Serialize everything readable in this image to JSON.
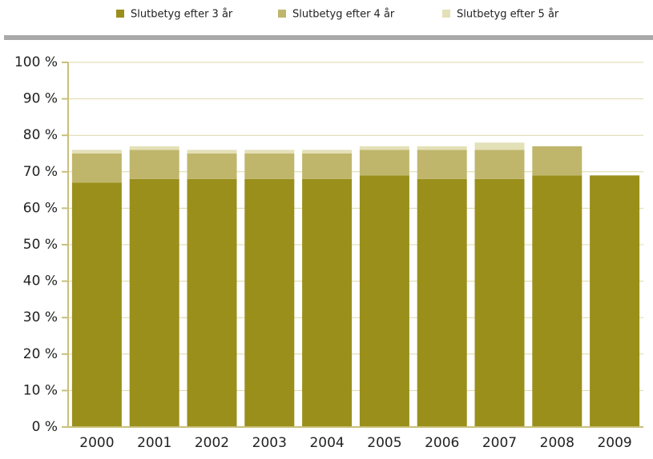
{
  "chart_data": {
    "type": "stacked_bar",
    "categories": [
      "2000",
      "2001",
      "2002",
      "2003",
      "2004",
      "2005",
      "2006",
      "2007",
      "2008",
      "2009"
    ],
    "series": [
      {
        "name": "Slutbetyg efter 3 år",
        "color": "#9a8f1b",
        "values": [
          67,
          68,
          68,
          68,
          68,
          69,
          68,
          68,
          69,
          69
        ]
      },
      {
        "name": "Slutbetyg efter 4 år",
        "color": "#bfb66c",
        "values": [
          8,
          8,
          7,
          7,
          7,
          7,
          8,
          8,
          8,
          0
        ]
      },
      {
        "name": "Slutbetyg efter 5 år",
        "color": "#e4e0b8",
        "values": [
          1,
          1,
          1,
          1,
          1,
          1,
          1,
          2,
          0,
          0
        ]
      }
    ],
    "ylim": [
      0,
      100
    ],
    "yticks": [
      {
        "value": 0,
        "label": "0 %"
      },
      {
        "value": 10,
        "label": "10 %"
      },
      {
        "value": 20,
        "label": "20 %"
      },
      {
        "value": 30,
        "label": "30 %"
      },
      {
        "value": 40,
        "label": "40 %"
      },
      {
        "value": 50,
        "label": "50 %"
      },
      {
        "value": 60,
        "label": "60 %"
      },
      {
        "value": 70,
        "label": "70 %"
      },
      {
        "value": 80,
        "label": "80 %"
      },
      {
        "value": 90,
        "label": "90 %"
      },
      {
        "value": 100,
        "label": "100 %"
      }
    ],
    "grid": true,
    "legend": "top"
  }
}
